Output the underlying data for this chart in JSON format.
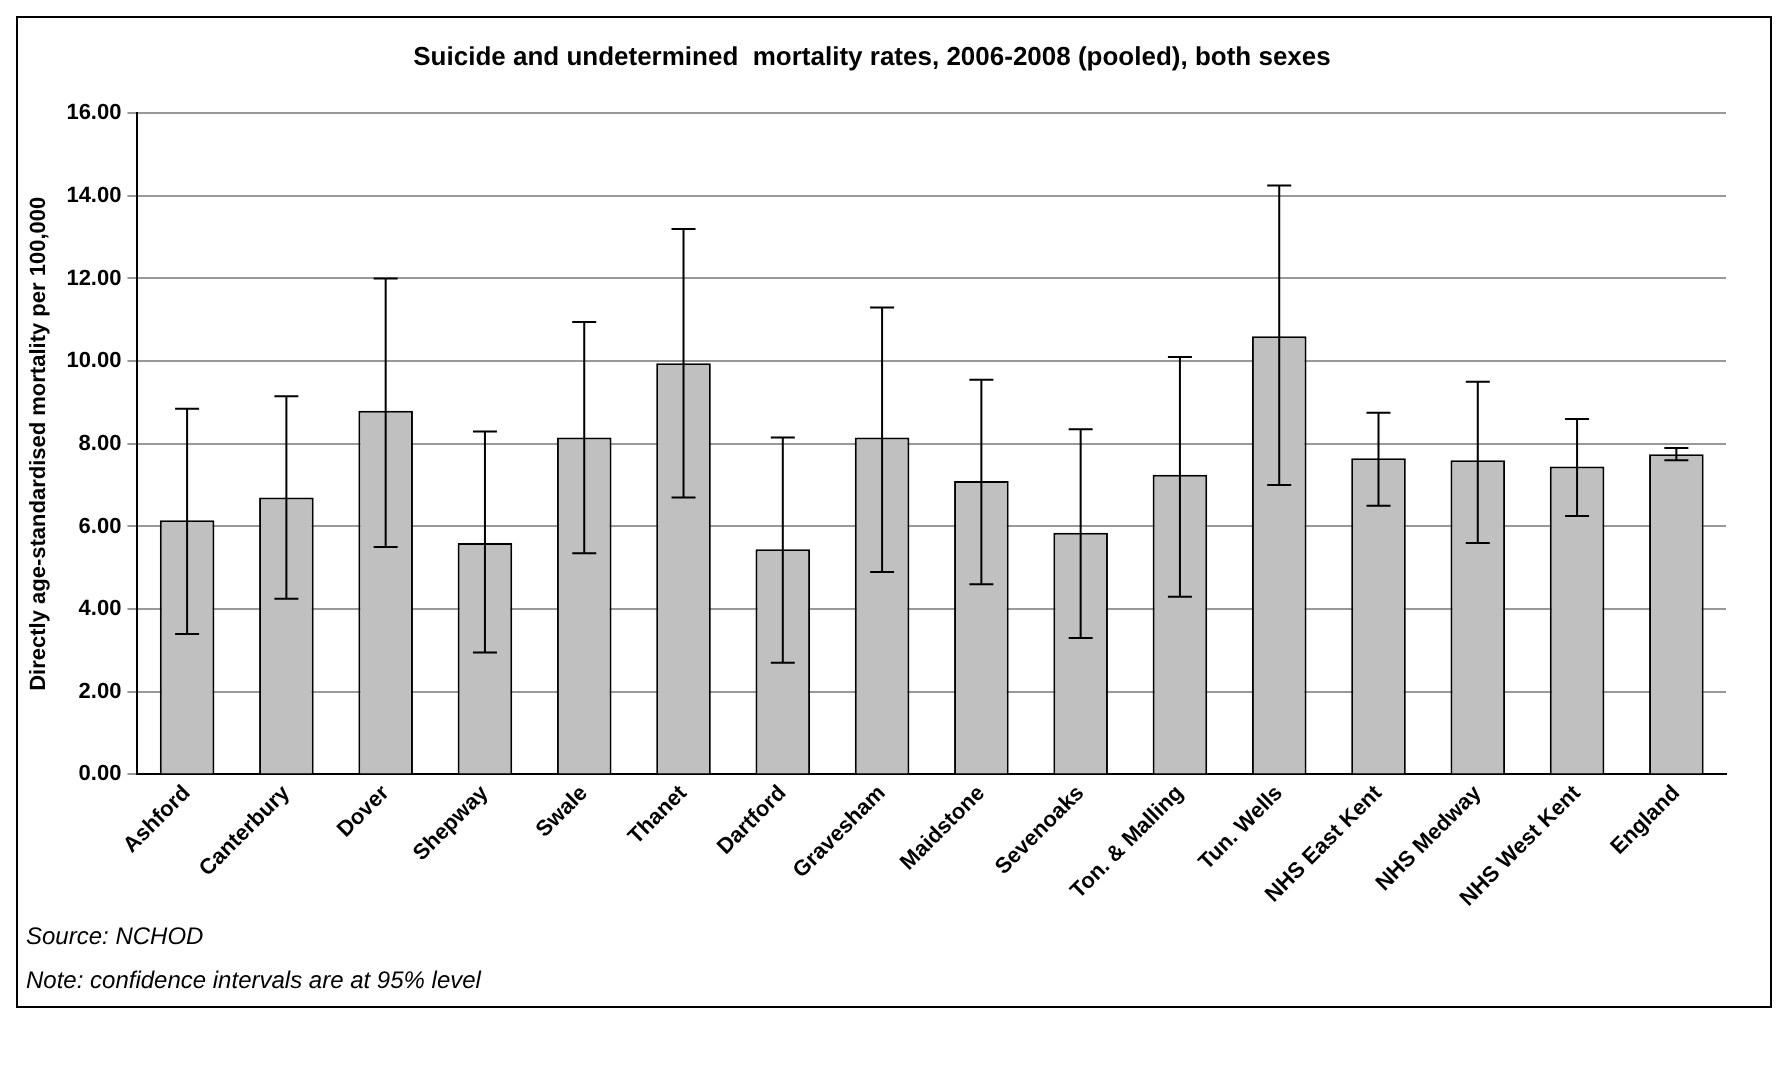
{
  "chart_data": {
    "type": "bar",
    "title": "Suicide and undetermined  mortality rates, 2006-2008 (pooled), both sexes",
    "ylabel": "Directly age-standardised mortality per 100,000",
    "categories": [
      "Ashford",
      "Canterbury",
      "Dover",
      "Shepway",
      "Swale",
      "Thanet",
      "Dartford",
      "Gravesham",
      "Maidstone",
      "Sevenoaks",
      "Ton. & Malling",
      "Tun. Wells",
      "NHS East Kent",
      "NHS Medway",
      "NHS West Kent",
      "England"
    ],
    "values": [
      6.15,
      6.7,
      8.8,
      5.6,
      8.15,
      9.95,
      5.45,
      8.15,
      7.1,
      5.85,
      7.25,
      10.6,
      7.65,
      7.6,
      7.45,
      7.75
    ],
    "errors": [
      [
        3.4,
        8.85
      ],
      [
        4.25,
        9.15
      ],
      [
        5.5,
        12.0
      ],
      [
        2.95,
        8.3
      ],
      [
        5.35,
        10.95
      ],
      [
        6.7,
        13.2
      ],
      [
        2.7,
        8.15
      ],
      [
        4.9,
        11.3
      ],
      [
        4.6,
        9.55
      ],
      [
        3.3,
        8.35
      ],
      [
        4.3,
        10.1
      ],
      [
        7.0,
        14.25
      ],
      [
        6.5,
        8.75
      ],
      [
        5.6,
        9.5
      ],
      [
        6.25,
        8.6
      ],
      [
        7.6,
        7.9
      ]
    ],
    "color": "#c0c0c0",
    "ylim": [
      0,
      16
    ],
    "yticks": [
      {
        "value": 0,
        "label": "0.00"
      },
      {
        "value": 2,
        "label": "2.00"
      },
      {
        "value": 4,
        "label": "4.00"
      },
      {
        "value": 6,
        "label": "6.00"
      },
      {
        "value": 8,
        "label": "8.00"
      },
      {
        "value": 10,
        "label": "10.00"
      },
      {
        "value": 12,
        "label": "12.00"
      },
      {
        "value": 14,
        "label": "14.00"
      },
      {
        "value": 16,
        "label": "16.00"
      }
    ],
    "grid": "y",
    "legend": false,
    "annotations": [
      "Source: NCHOD",
      "Note: confidence intervals are at 95% level"
    ]
  }
}
